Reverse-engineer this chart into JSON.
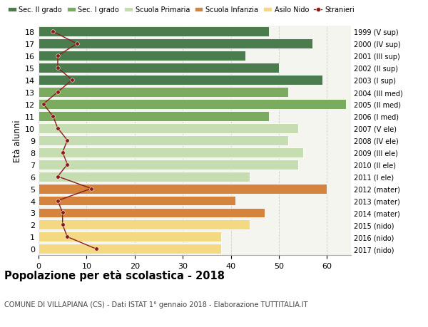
{
  "ages": [
    18,
    17,
    16,
    15,
    14,
    13,
    12,
    11,
    10,
    9,
    8,
    7,
    6,
    5,
    4,
    3,
    2,
    1,
    0
  ],
  "years": [
    "1999 (V sup)",
    "2000 (IV sup)",
    "2001 (III sup)",
    "2002 (II sup)",
    "2003 (I sup)",
    "2004 (III med)",
    "2005 (II med)",
    "2006 (I med)",
    "2007 (V ele)",
    "2008 (IV ele)",
    "2009 (III ele)",
    "2010 (II ele)",
    "2011 (I ele)",
    "2012 (mater)",
    "2013 (mater)",
    "2014 (mater)",
    "2015 (nido)",
    "2016 (nido)",
    "2017 (nido)"
  ],
  "bar_values": [
    48,
    57,
    43,
    50,
    59,
    52,
    64,
    48,
    54,
    52,
    55,
    54,
    44,
    60,
    41,
    47,
    44,
    38,
    38
  ],
  "bar_colors": [
    "#4a7c4e",
    "#4a7c4e",
    "#4a7c4e",
    "#4a7c4e",
    "#4a7c4e",
    "#7aab5e",
    "#7aab5e",
    "#7aab5e",
    "#c5ddb0",
    "#c5ddb0",
    "#c5ddb0",
    "#c5ddb0",
    "#c5ddb0",
    "#d4843c",
    "#d4843c",
    "#d4843c",
    "#f5d882",
    "#f5d882",
    "#f5d882"
  ],
  "stranieri_values": [
    3,
    8,
    4,
    4,
    7,
    4,
    1,
    3,
    4,
    6,
    5,
    6,
    4,
    11,
    4,
    5,
    5,
    6,
    12
  ],
  "legend_labels": [
    "Sec. II grado",
    "Sec. I grado",
    "Scuola Primaria",
    "Scuola Infanzia",
    "Asilo Nido",
    "Stranieri"
  ],
  "legend_colors": [
    "#4a7c4e",
    "#7aab5e",
    "#c5ddb0",
    "#d4843c",
    "#f5d882",
    "#8b1a1a"
  ],
  "ylabel_left": "Età alunni",
  "title": "Popolazione per età scolastica - 2018",
  "subtitle": "COMUNE DI VILLAPIANA (CS) - Dati ISTAT 1° gennaio 2018 - Elaborazione TUTTITALIA.IT",
  "xlim": [
    0,
    65
  ],
  "background_color": "#ffffff",
  "plot_bg_color": "#f5f5f0",
  "grid_color": "#cccccc",
  "bar_height": 0.82
}
